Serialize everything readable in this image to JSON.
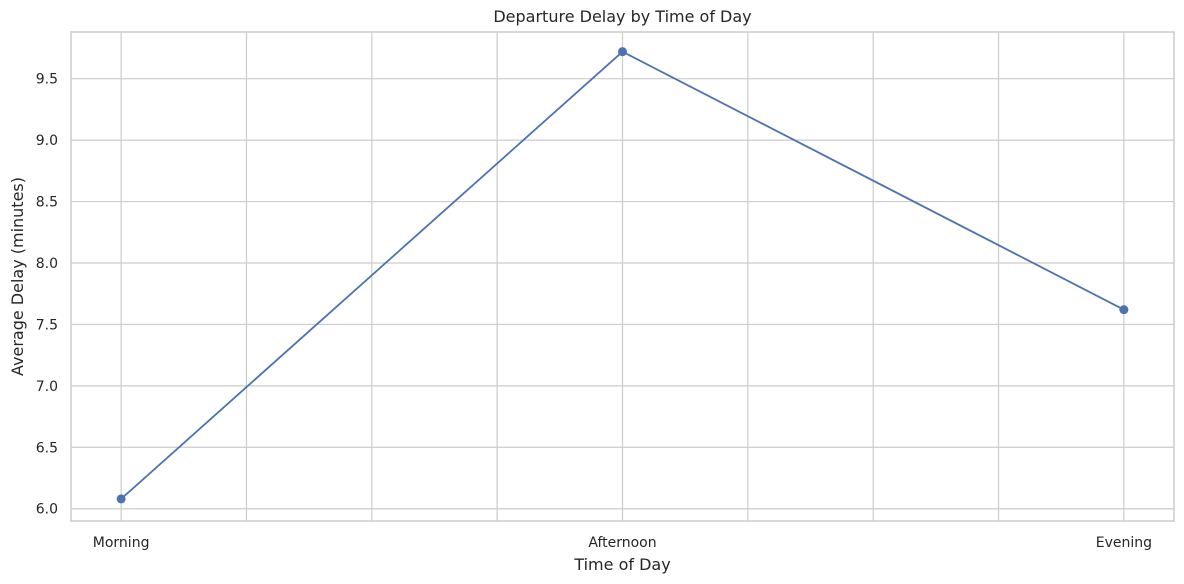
{
  "chart_data": {
    "type": "line",
    "title": "Departure Delay by Time of Day",
    "xlabel": "Time of Day",
    "ylabel": "Average Delay (minutes)",
    "categories": [
      "Morning",
      "Afternoon",
      "Evening"
    ],
    "series": [
      {
        "values": [
          6.08,
          9.72,
          7.62
        ],
        "color": "#4c72b0",
        "marker": "circle"
      }
    ],
    "xlim": [
      -0.1,
      2.1
    ],
    "ylim": [
      5.9,
      9.88
    ],
    "yticks": [
      6.0,
      6.5,
      7.0,
      7.5,
      8.0,
      8.5,
      9.0,
      9.5
    ],
    "ytick_labels": [
      "6.0",
      "6.5",
      "7.0",
      "7.5",
      "8.0",
      "8.5",
      "9.0",
      "9.5"
    ],
    "x_gridlines": [
      0,
      0.25,
      0.5,
      0.75,
      1,
      1.25,
      1.5,
      1.75,
      2
    ],
    "grid": true,
    "gridColor": "#cccccc"
  }
}
